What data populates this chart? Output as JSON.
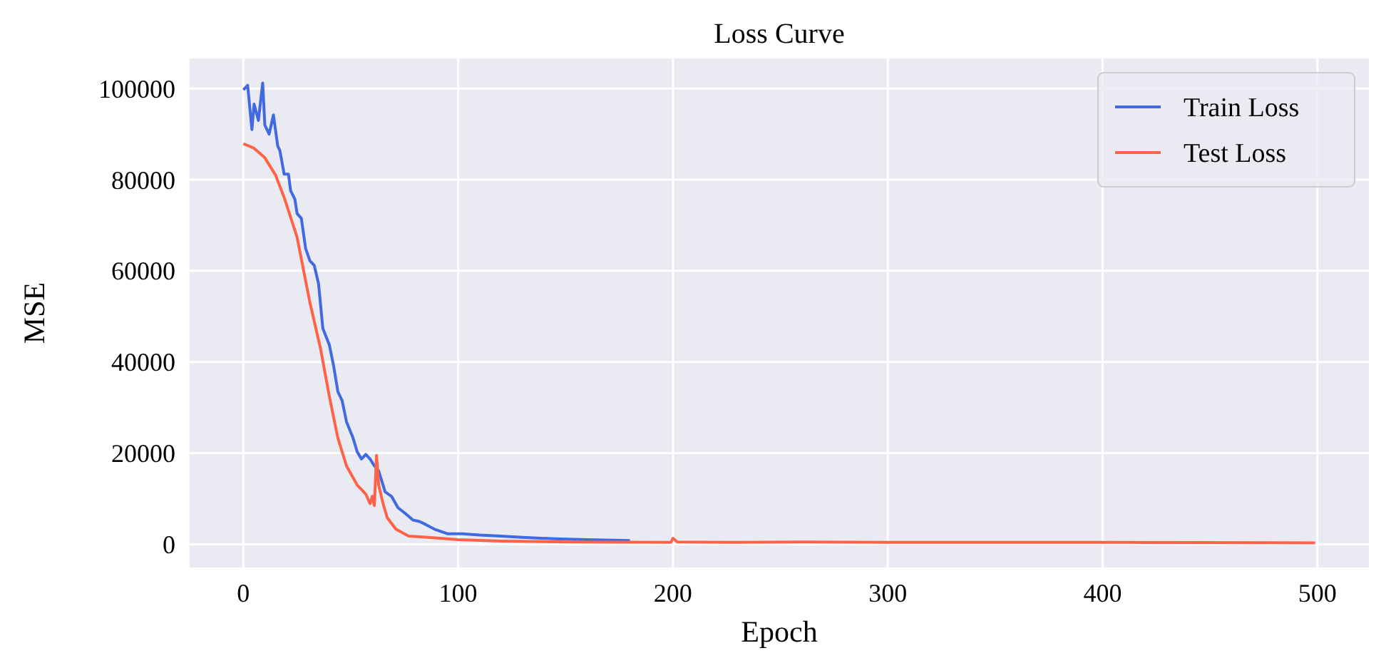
{
  "chart_data": {
    "type": "line",
    "title": "Loss Curve",
    "xlabel": "Epoch",
    "ylabel": "MSE",
    "xlim": [
      -25,
      524
    ],
    "ylim": [
      -5100,
      106600
    ],
    "xticks": [
      0,
      100,
      200,
      300,
      400,
      500
    ],
    "yticks": [
      0,
      20000,
      40000,
      60000,
      80000,
      100000
    ],
    "grid": true,
    "legend": "top right",
    "line_style": "solid",
    "series": [
      {
        "name": "Train Loss",
        "color": "#4169e1",
        "x": [
          0,
          2,
          4,
          5,
          7,
          9,
          10,
          12,
          14,
          16,
          17,
          19,
          21,
          22,
          24,
          25,
          27,
          29,
          31,
          33,
          35,
          37,
          40,
          42,
          44,
          46,
          48,
          51,
          53,
          55,
          57,
          59,
          61,
          63,
          66,
          69,
          72,
          75,
          79,
          82,
          85,
          89,
          95,
          102,
          110,
          120,
          130,
          145,
          160,
          180
        ],
        "values": [
          99700,
          100700,
          91000,
          96600,
          93000,
          101200,
          92000,
          90000,
          94200,
          87400,
          86400,
          81200,
          81200,
          77600,
          75700,
          72600,
          71500,
          64900,
          62200,
          61200,
          57200,
          47400,
          43800,
          39200,
          33500,
          31500,
          26900,
          23400,
          20300,
          18700,
          19700,
          18700,
          17200,
          16100,
          11500,
          10500,
          8000,
          6900,
          5300,
          5000,
          4300,
          3300,
          2300,
          2300,
          2000,
          1800,
          1500,
          1200,
          1000,
          800
        ]
      },
      {
        "name": "Test Loss",
        "color": "#ff6347",
        "x": [
          0,
          5,
          10,
          15,
          19,
          25,
          31,
          36,
          40,
          44,
          48,
          53,
          57,
          59,
          60,
          61,
          62,
          63,
          65,
          67,
          71,
          77,
          86,
          100,
          120,
          150,
          199,
          200,
          202,
          230,
          260,
          300,
          400,
          499
        ],
        "values": [
          87900,
          86900,
          84800,
          81000,
          76100,
          67400,
          53000,
          42800,
          32500,
          23300,
          17200,
          13000,
          11000,
          8900,
          10500,
          8500,
          19500,
          13000,
          9000,
          5800,
          3300,
          1800,
          1500,
          1000,
          700,
          500,
          400,
          1300,
          500,
          400,
          500,
          400,
          400,
          300
        ]
      }
    ]
  }
}
